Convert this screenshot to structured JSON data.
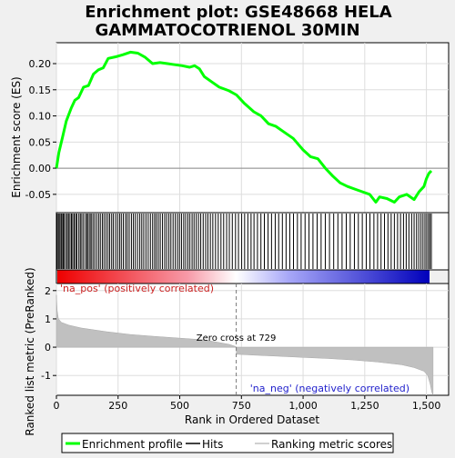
{
  "title_line1": "Enrichment plot: GSE48668 HELA",
  "title_line2": "GAMMATOCOTRIENOL 30MIN",
  "es_ylabel": "Enrichment score (ES)",
  "rank_ylabel": "Ranked list metric (PreRanked)",
  "xlabel": "Rank in Ordered Dataset",
  "pos_label": "'na_pos' (positively correlated)",
  "neg_label": "'na_neg' (negatively correlated)",
  "zero_cross_label": "Zero cross at 729",
  "legend": {
    "enrichment_profile": "Enrichment profile",
    "hits": "Hits",
    "ranking_metric": "Ranking metric scores"
  },
  "colors": {
    "profile": "#00ff00",
    "pos_label": "#cc2222",
    "neg_label": "#2222cc",
    "metric_fill": "#c0c0c0",
    "grid": "#dddddd"
  },
  "chart_data": {
    "type": "line",
    "n_genes": 1527,
    "zero_cross": 729,
    "x_ticks": [
      0,
      250,
      500,
      750,
      1000,
      1250,
      1500
    ],
    "x_tick_labels": [
      "0",
      "250",
      "500",
      "750",
      "1,000",
      "1,250",
      "1,500"
    ],
    "es_yticks": [
      -0.05,
      0.0,
      0.05,
      0.1,
      0.15,
      0.2
    ],
    "es_ytick_labels": [
      "-0.05",
      "0.00",
      "0.05",
      "0.10",
      "0.15",
      "0.20"
    ],
    "es_ylim": [
      -0.085,
      0.24
    ],
    "rank_yticks": [
      -1,
      0,
      1,
      2
    ],
    "rank_ytick_labels": [
      "-1",
      "0",
      "1",
      "2"
    ],
    "rank_ylim": [
      -1.7,
      2.25
    ],
    "xlim": [
      0,
      1590
    ],
    "es_profile": [
      [
        0,
        0.0
      ],
      [
        10,
        0.03
      ],
      [
        25,
        0.06
      ],
      [
        40,
        0.09
      ],
      [
        60,
        0.115
      ],
      [
        75,
        0.13
      ],
      [
        90,
        0.135
      ],
      [
        110,
        0.155
      ],
      [
        130,
        0.158
      ],
      [
        150,
        0.18
      ],
      [
        170,
        0.188
      ],
      [
        190,
        0.192
      ],
      [
        210,
        0.21
      ],
      [
        240,
        0.213
      ],
      [
        270,
        0.217
      ],
      [
        300,
        0.222
      ],
      [
        330,
        0.22
      ],
      [
        360,
        0.212
      ],
      [
        390,
        0.2
      ],
      [
        420,
        0.202
      ],
      [
        450,
        0.2
      ],
      [
        480,
        0.198
      ],
      [
        510,
        0.196
      ],
      [
        540,
        0.193
      ],
      [
        560,
        0.196
      ],
      [
        580,
        0.19
      ],
      [
        600,
        0.175
      ],
      [
        630,
        0.165
      ],
      [
        660,
        0.155
      ],
      [
        700,
        0.148
      ],
      [
        730,
        0.14
      ],
      [
        760,
        0.125
      ],
      [
        800,
        0.108
      ],
      [
        830,
        0.1
      ],
      [
        860,
        0.085
      ],
      [
        890,
        0.08
      ],
      [
        920,
        0.07
      ],
      [
        960,
        0.057
      ],
      [
        1000,
        0.035
      ],
      [
        1030,
        0.022
      ],
      [
        1060,
        0.018
      ],
      [
        1090,
        0.0
      ],
      [
        1120,
        -0.015
      ],
      [
        1150,
        -0.028
      ],
      [
        1180,
        -0.035
      ],
      [
        1210,
        -0.04
      ],
      [
        1240,
        -0.045
      ],
      [
        1270,
        -0.05
      ],
      [
        1295,
        -0.065
      ],
      [
        1310,
        -0.055
      ],
      [
        1340,
        -0.058
      ],
      [
        1370,
        -0.065
      ],
      [
        1390,
        -0.055
      ],
      [
        1420,
        -0.05
      ],
      [
        1450,
        -0.06
      ],
      [
        1470,
        -0.045
      ],
      [
        1490,
        -0.035
      ],
      [
        1500,
        -0.02
      ],
      [
        1510,
        -0.01
      ],
      [
        1520,
        -0.005
      ]
    ],
    "hits": [
      3,
      8,
      12,
      18,
      22,
      27,
      31,
      38,
      44,
      49,
      55,
      61,
      66,
      72,
      78,
      83,
      91,
      97,
      103,
      110,
      118,
      124,
      129,
      136,
      141,
      148,
      155,
      163,
      171,
      178,
      186,
      193,
      201,
      209,
      216,
      224,
      231,
      240,
      248,
      256,
      263,
      271,
      280,
      287,
      295,
      304,
      312,
      320,
      329,
      338,
      346,
      354,
      363,
      372,
      381,
      390,
      398,
      405,
      413,
      421,
      430,
      439,
      447,
      456,
      464,
      473,
      482,
      491,
      499,
      507,
      516,
      524,
      533,
      541,
      550,
      558,
      567,
      576,
      585,
      595,
      605,
      614,
      624,
      634,
      645,
      656,
      667,
      678,
      690,
      701,
      713,
      726,
      738,
      751,
      763,
      776,
      789,
      801,
      815,
      829,
      843,
      858,
      872,
      887,
      901,
      916,
      931,
      946,
      961,
      977,
      992,
      1008,
      1024,
      1040,
      1057,
      1073,
      1090,
      1107,
      1124,
      1141,
      1158,
      1175,
      1191,
      1208,
      1224,
      1240,
      1256,
      1271,
      1287,
      1302,
      1316,
      1330,
      1344,
      1357,
      1370,
      1383,
      1395,
      1407,
      1418,
      1429,
      1440,
      1450,
      1460,
      1469,
      1478,
      1486,
      1494,
      1501,
      1508,
      1514,
      1520
    ],
    "ranking_metric": [
      [
        0,
        1.85
      ],
      [
        3,
        1.3
      ],
      [
        8,
        1.0
      ],
      [
        20,
        0.88
      ],
      [
        50,
        0.78
      ],
      [
        100,
        0.68
      ],
      [
        200,
        0.55
      ],
      [
        300,
        0.45
      ],
      [
        400,
        0.38
      ],
      [
        500,
        0.32
      ],
      [
        600,
        0.26
      ],
      [
        700,
        0.1
      ],
      [
        728,
        0.02
      ],
      [
        730,
        -0.25
      ],
      [
        800,
        -0.28
      ],
      [
        900,
        -0.32
      ],
      [
        1000,
        -0.36
      ],
      [
        1100,
        -0.4
      ],
      [
        1200,
        -0.45
      ],
      [
        1300,
        -0.52
      ],
      [
        1400,
        -0.62
      ],
      [
        1450,
        -0.72
      ],
      [
        1490,
        -0.85
      ],
      [
        1505,
        -1.0
      ],
      [
        1515,
        -1.3
      ],
      [
        1522,
        -1.6
      ],
      [
        1527,
        -1.7
      ]
    ]
  }
}
